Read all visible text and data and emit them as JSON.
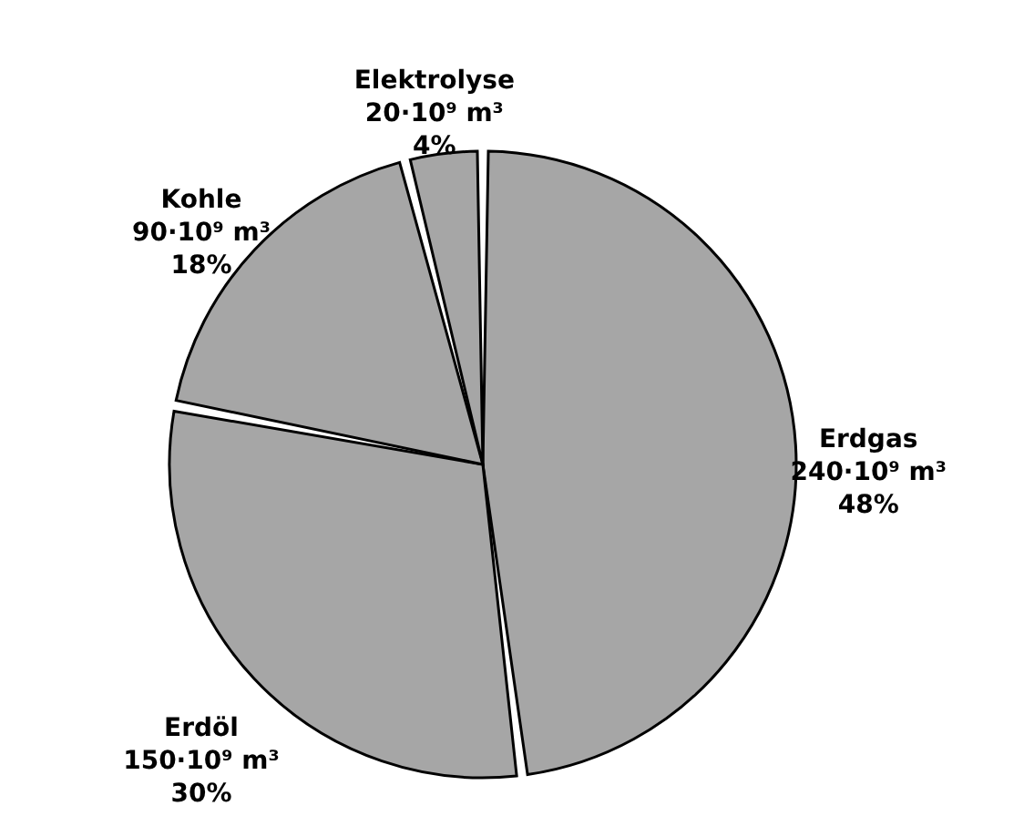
{
  "chart_data": {
    "type": "pie",
    "categories": [
      "Erdgas",
      "Erdöl",
      "Kohle",
      "Elektrolyse"
    ],
    "values": [
      240,
      150,
      90,
      20
    ],
    "colors": [
      "#a6a6a6",
      "#a6a6a6",
      "#a6a6a6",
      "#a6a6a6"
    ],
    "value_labels": [
      "240·10⁹ m³\n48%",
      "150·10⁹ m³\n30%",
      "90·10⁹ m³\n18%",
      "20·10⁹ m³\n4%"
    ]
  }
}
